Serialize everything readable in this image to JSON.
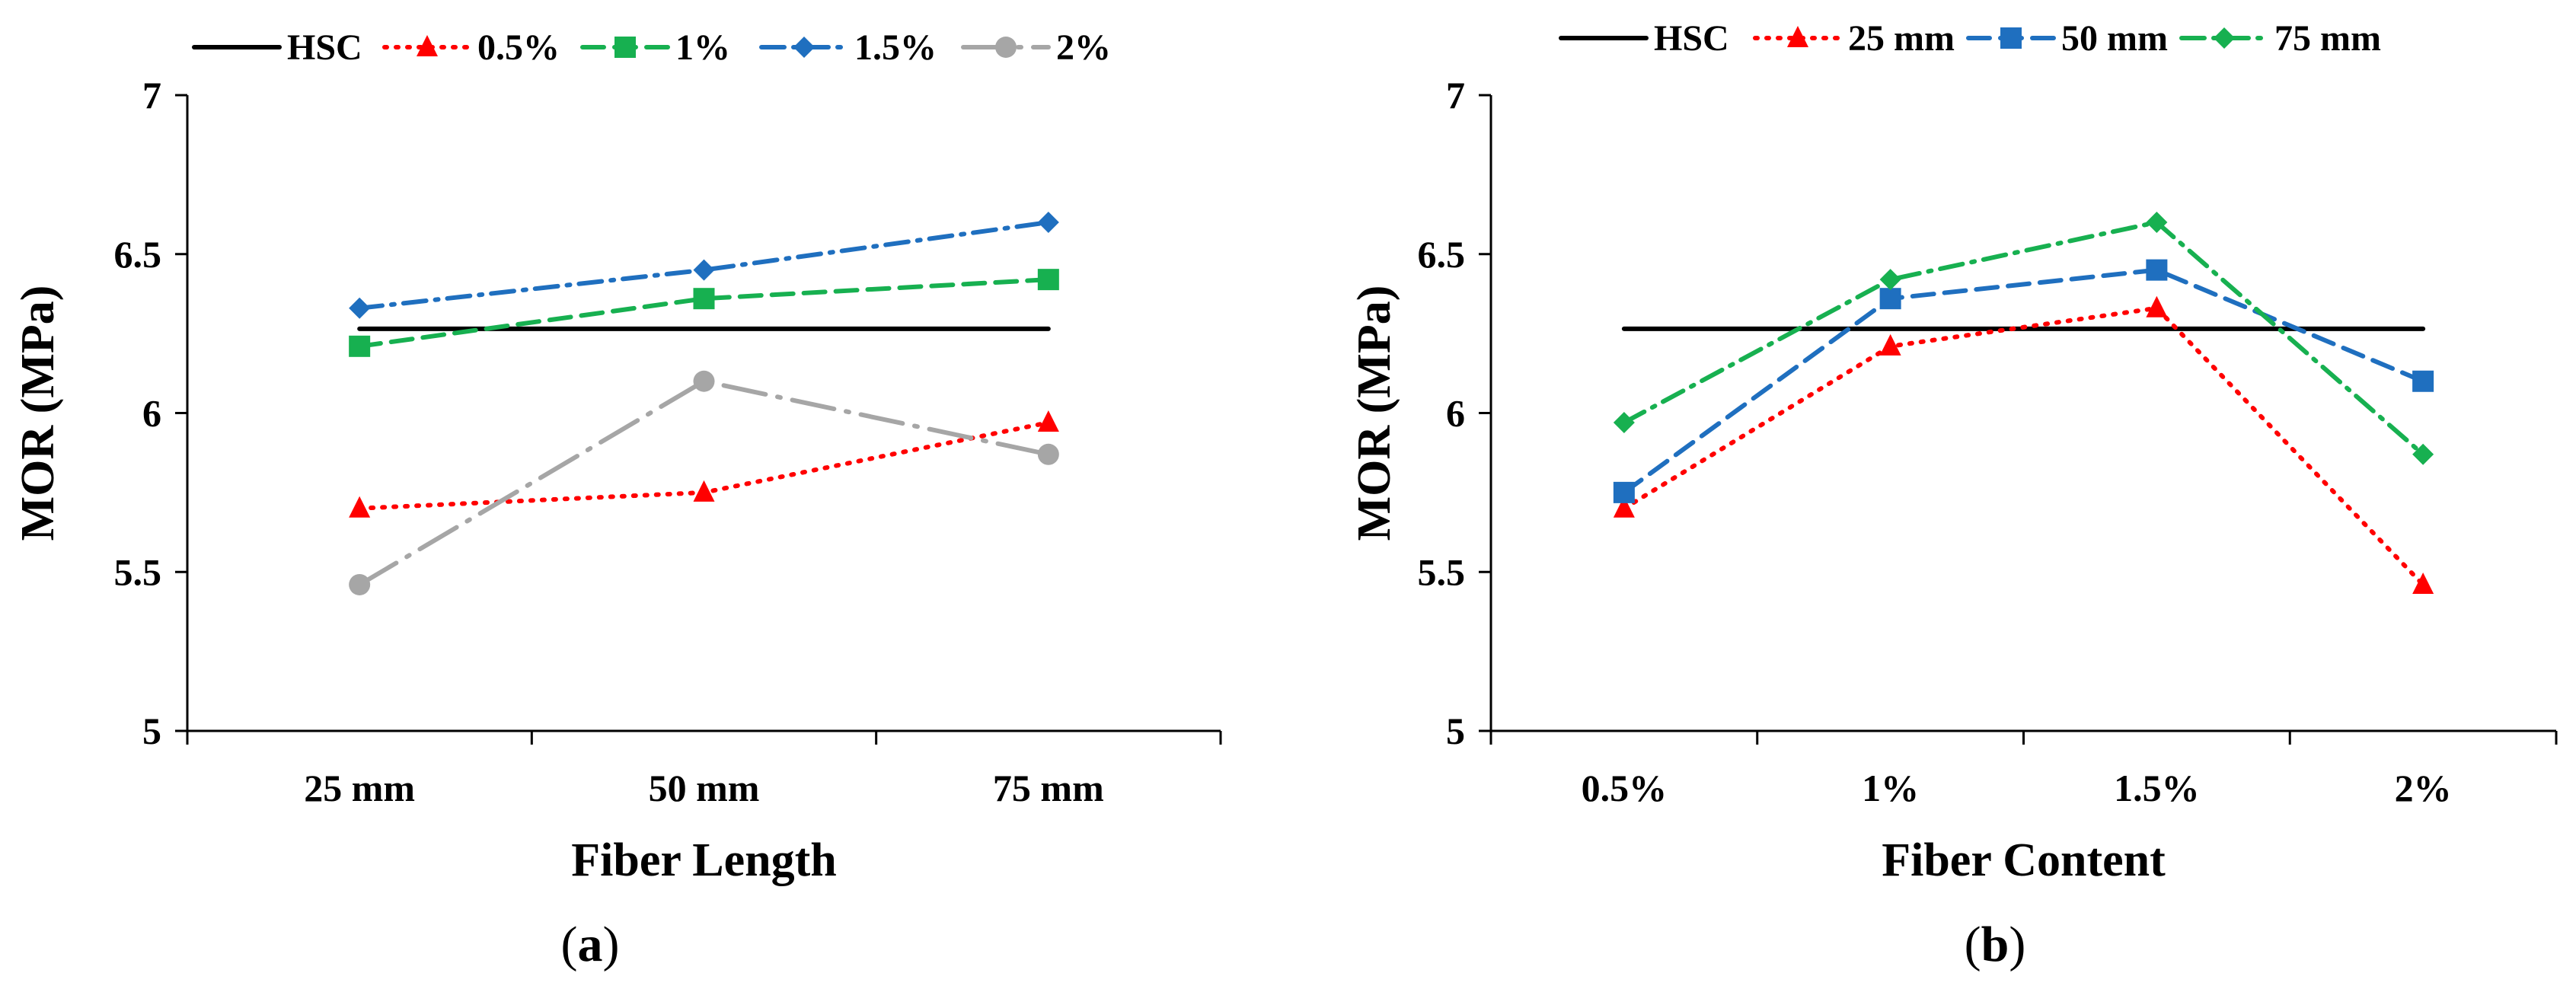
{
  "colors": {
    "hsc": "#000000",
    "red": "#ff0000",
    "green": "#17b050",
    "blue": "#1f6fbf",
    "gray": "#a6a6a6"
  },
  "chart_data": [
    {
      "panel_label": "a",
      "type": "line",
      "title": "",
      "xlabel": "Fiber Length",
      "ylabel": "MOR (MPa)",
      "categories": [
        "25 mm",
        "50 mm",
        "75 mm"
      ],
      "ylim": [
        5,
        7
      ],
      "yticks": [
        "5",
        "5.5",
        "6",
        "6.5",
        "7"
      ],
      "legend_position": "top",
      "series": [
        {
          "name": "HSC",
          "values": [
            6.265,
            6.265,
            6.265
          ],
          "marker": "none",
          "dash": "solid",
          "color": "hsc"
        },
        {
          "name": "0.5%",
          "values": [
            5.7,
            5.75,
            5.97
          ],
          "marker": "triangle",
          "dash": "dotted",
          "color": "red"
        },
        {
          "name": "1%",
          "values": [
            6.21,
            6.36,
            6.42
          ],
          "marker": "square",
          "dash": "dashed",
          "color": "green"
        },
        {
          "name": "1.5%",
          "values": [
            6.33,
            6.45,
            6.6
          ],
          "marker": "diamond",
          "dash": "dashdot",
          "color": "blue"
        },
        {
          "name": "2%",
          "values": [
            5.46,
            6.1,
            5.87
          ],
          "marker": "circle",
          "dash": "longdashdot",
          "color": "gray"
        }
      ]
    },
    {
      "panel_label": "b",
      "type": "line",
      "title": "",
      "xlabel": "Fiber Content",
      "ylabel": "MOR (MPa)",
      "categories": [
        "0.5%",
        "1%",
        "1.5%",
        "2%"
      ],
      "ylim": [
        5,
        7
      ],
      "yticks": [
        "5",
        "5.5",
        "6",
        "6.5",
        "7"
      ],
      "legend_position": "top",
      "series": [
        {
          "name": "HSC",
          "values": [
            6.265,
            6.265,
            6.265,
            6.265
          ],
          "marker": "none",
          "dash": "solid",
          "color": "hsc"
        },
        {
          "name": "25 mm",
          "values": [
            5.7,
            6.21,
            6.33,
            5.46
          ],
          "marker": "triangle",
          "dash": "dotted",
          "color": "red"
        },
        {
          "name": "50 mm",
          "values": [
            5.75,
            6.36,
            6.45,
            6.1
          ],
          "marker": "square",
          "dash": "dashed",
          "color": "blue"
        },
        {
          "name": "75 mm",
          "values": [
            5.97,
            6.42,
            6.6,
            5.87
          ],
          "marker": "diamond",
          "dash": "dashdot",
          "color": "green"
        }
      ]
    }
  ]
}
